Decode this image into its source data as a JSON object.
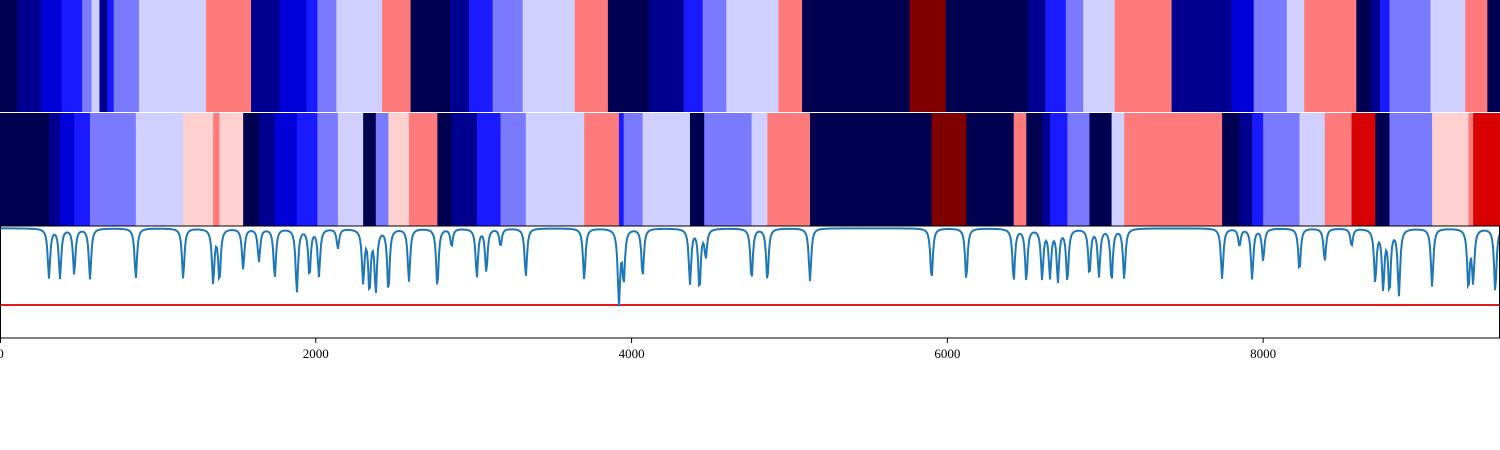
{
  "chart_data": [
    {
      "type": "heatmap",
      "name": "heatmap-upper",
      "x_range": [
        0,
        9500
      ],
      "colormap": "seismic",
      "segments": [
        {
          "start": 0,
          "end": 110,
          "color": "#000050"
        },
        {
          "start": 110,
          "end": 260,
          "color": "#000090"
        },
        {
          "start": 260,
          "end": 390,
          "color": "#0000d8"
        },
        {
          "start": 390,
          "end": 520,
          "color": "#1a1aff"
        },
        {
          "start": 520,
          "end": 580,
          "color": "#7a7aff"
        },
        {
          "start": 580,
          "end": 630,
          "color": "#d0d0ff"
        },
        {
          "start": 630,
          "end": 680,
          "color": "#000090"
        },
        {
          "start": 680,
          "end": 720,
          "color": "#1a1aff"
        },
        {
          "start": 720,
          "end": 880,
          "color": "#7a7aff"
        },
        {
          "start": 880,
          "end": 1305,
          "color": "#d0d0ff"
        },
        {
          "start": 1305,
          "end": 1590,
          "color": "#ff7a7a"
        },
        {
          "start": 1590,
          "end": 1770,
          "color": "#000090"
        },
        {
          "start": 1770,
          "end": 1940,
          "color": "#0000d8"
        },
        {
          "start": 1940,
          "end": 2010,
          "color": "#1a1aff"
        },
        {
          "start": 2010,
          "end": 2130,
          "color": "#7a7aff"
        },
        {
          "start": 2130,
          "end": 2420,
          "color": "#d0d0ff"
        },
        {
          "start": 2420,
          "end": 2600,
          "color": "#ff7a7a"
        },
        {
          "start": 2600,
          "end": 2850,
          "color": "#000050"
        },
        {
          "start": 2850,
          "end": 2970,
          "color": "#000090"
        },
        {
          "start": 2970,
          "end": 3120,
          "color": "#1a1aff"
        },
        {
          "start": 3120,
          "end": 3310,
          "color": "#7a7aff"
        },
        {
          "start": 3310,
          "end": 3640,
          "color": "#d0d0ff"
        },
        {
          "start": 3640,
          "end": 3850,
          "color": "#ff7a7a"
        },
        {
          "start": 3850,
          "end": 4110,
          "color": "#000050"
        },
        {
          "start": 4110,
          "end": 4330,
          "color": "#000090"
        },
        {
          "start": 4330,
          "end": 4450,
          "color": "#1a1aff"
        },
        {
          "start": 4450,
          "end": 4600,
          "color": "#7a7aff"
        },
        {
          "start": 4600,
          "end": 4930,
          "color": "#d0d0ff"
        },
        {
          "start": 4930,
          "end": 5080,
          "color": "#ff7a7a"
        },
        {
          "start": 5080,
          "end": 5760,
          "color": "#000050"
        },
        {
          "start": 5760,
          "end": 5990,
          "color": "#800000"
        },
        {
          "start": 5990,
          "end": 6510,
          "color": "#000050"
        },
        {
          "start": 6510,
          "end": 6620,
          "color": "#000090"
        },
        {
          "start": 6620,
          "end": 6750,
          "color": "#1a1aff"
        },
        {
          "start": 6750,
          "end": 6860,
          "color": "#7a7aff"
        },
        {
          "start": 6860,
          "end": 7060,
          "color": "#d0d0ff"
        },
        {
          "start": 7060,
          "end": 7420,
          "color": "#ff7a7a"
        },
        {
          "start": 7420,
          "end": 7800,
          "color": "#000090"
        },
        {
          "start": 7800,
          "end": 7940,
          "color": "#0000d8"
        },
        {
          "start": 7940,
          "end": 8150,
          "color": "#7a7aff"
        },
        {
          "start": 8150,
          "end": 8260,
          "color": "#d0d0ff"
        },
        {
          "start": 8260,
          "end": 8590,
          "color": "#ff7a7a"
        },
        {
          "start": 8590,
          "end": 8680,
          "color": "#000050"
        },
        {
          "start": 8680,
          "end": 8740,
          "color": "#000090"
        },
        {
          "start": 8740,
          "end": 8800,
          "color": "#1a1aff"
        },
        {
          "start": 8800,
          "end": 9060,
          "color": "#7a7aff"
        },
        {
          "start": 9060,
          "end": 9280,
          "color": "#d0d0ff"
        },
        {
          "start": 9280,
          "end": 9420,
          "color": "#ff7a7a"
        },
        {
          "start": 9420,
          "end": 9500,
          "color": "#000050"
        }
      ]
    },
    {
      "type": "heatmap",
      "name": "heatmap-lower",
      "x_range": [
        0,
        9500
      ],
      "colormap": "seismic",
      "segments": [
        {
          "start": 0,
          "end": 310,
          "color": "#000050"
        },
        {
          "start": 310,
          "end": 380,
          "color": "#000090"
        },
        {
          "start": 380,
          "end": 470,
          "color": "#0000d8"
        },
        {
          "start": 470,
          "end": 570,
          "color": "#1a1aff"
        },
        {
          "start": 570,
          "end": 860,
          "color": "#7a7aff"
        },
        {
          "start": 860,
          "end": 1160,
          "color": "#d0d0ff"
        },
        {
          "start": 1160,
          "end": 1350,
          "color": "#ffd0d0"
        },
        {
          "start": 1350,
          "end": 1390,
          "color": "#ff7a7a"
        },
        {
          "start": 1390,
          "end": 1540,
          "color": "#ffd0d0"
        },
        {
          "start": 1540,
          "end": 1640,
          "color": "#000050"
        },
        {
          "start": 1640,
          "end": 1740,
          "color": "#000090"
        },
        {
          "start": 1740,
          "end": 1880,
          "color": "#0000d8"
        },
        {
          "start": 1880,
          "end": 2010,
          "color": "#1a1aff"
        },
        {
          "start": 2010,
          "end": 2140,
          "color": "#7a7aff"
        },
        {
          "start": 2140,
          "end": 2300,
          "color": "#d0d0ff"
        },
        {
          "start": 2300,
          "end": 2380,
          "color": "#000050"
        },
        {
          "start": 2380,
          "end": 2460,
          "color": "#7a7aff"
        },
        {
          "start": 2460,
          "end": 2590,
          "color": "#ffd0d0"
        },
        {
          "start": 2590,
          "end": 2770,
          "color": "#ff7a7a"
        },
        {
          "start": 2770,
          "end": 2860,
          "color": "#000050"
        },
        {
          "start": 2860,
          "end": 3020,
          "color": "#000090"
        },
        {
          "start": 3020,
          "end": 3170,
          "color": "#1a1aff"
        },
        {
          "start": 3170,
          "end": 3330,
          "color": "#7a7aff"
        },
        {
          "start": 3330,
          "end": 3700,
          "color": "#d0d0ff"
        },
        {
          "start": 3700,
          "end": 3920,
          "color": "#ff7a7a"
        },
        {
          "start": 3920,
          "end": 3950,
          "color": "#1a1aff"
        },
        {
          "start": 3950,
          "end": 4070,
          "color": "#7a7aff"
        },
        {
          "start": 4070,
          "end": 4370,
          "color": "#d0d0ff"
        },
        {
          "start": 4370,
          "end": 4460,
          "color": "#000050"
        },
        {
          "start": 4460,
          "end": 4760,
          "color": "#7a7aff"
        },
        {
          "start": 4760,
          "end": 4860,
          "color": "#d0d0ff"
        },
        {
          "start": 4860,
          "end": 5130,
          "color": "#ff7a7a"
        },
        {
          "start": 5130,
          "end": 5900,
          "color": "#000050"
        },
        {
          "start": 5900,
          "end": 6120,
          "color": "#800000"
        },
        {
          "start": 6120,
          "end": 6420,
          "color": "#000050"
        },
        {
          "start": 6420,
          "end": 6500,
          "color": "#ff7a7a"
        },
        {
          "start": 6500,
          "end": 6600,
          "color": "#000050"
        },
        {
          "start": 6600,
          "end": 6650,
          "color": "#000090"
        },
        {
          "start": 6650,
          "end": 6760,
          "color": "#1a1aff"
        },
        {
          "start": 6760,
          "end": 6900,
          "color": "#7a7aff"
        },
        {
          "start": 6900,
          "end": 7040,
          "color": "#000050"
        },
        {
          "start": 7040,
          "end": 7120,
          "color": "#d0d0ff"
        },
        {
          "start": 7120,
          "end": 7740,
          "color": "#ff7a7a"
        },
        {
          "start": 7740,
          "end": 7850,
          "color": "#000050"
        },
        {
          "start": 7850,
          "end": 7930,
          "color": "#000090"
        },
        {
          "start": 7930,
          "end": 8000,
          "color": "#1a1aff"
        },
        {
          "start": 8000,
          "end": 8230,
          "color": "#7a7aff"
        },
        {
          "start": 8230,
          "end": 8390,
          "color": "#d0d0ff"
        },
        {
          "start": 8390,
          "end": 8560,
          "color": "#ff7a7a"
        },
        {
          "start": 8560,
          "end": 8710,
          "color": "#d80000"
        },
        {
          "start": 8710,
          "end": 8800,
          "color": "#000050"
        },
        {
          "start": 8800,
          "end": 9070,
          "color": "#7a7aff"
        },
        {
          "start": 9070,
          "end": 9300,
          "color": "#ffd0d0"
        },
        {
          "start": 9300,
          "end": 9330,
          "color": "#ff7a7a"
        },
        {
          "start": 9330,
          "end": 9500,
          "color": "#d80000"
        }
      ]
    },
    {
      "type": "line",
      "name": "signal",
      "x_range": [
        0,
        9500
      ],
      "y_range": [
        -1,
        0.02
      ],
      "threshold": -0.7,
      "colors": {
        "line": "#1f77b4",
        "threshold": "#e41a1c"
      },
      "dips": [
        {
          "x": 310,
          "depth": 0.45
        },
        {
          "x": 380,
          "depth": 0.45
        },
        {
          "x": 470,
          "depth": 0.42
        },
        {
          "x": 570,
          "depth": 0.46
        },
        {
          "x": 860,
          "depth": 0.46
        },
        {
          "x": 1160,
          "depth": 0.46
        },
        {
          "x": 1350,
          "depth": 0.49
        },
        {
          "x": 1390,
          "depth": 0.47
        },
        {
          "x": 1540,
          "depth": 0.37
        },
        {
          "x": 1640,
          "depth": 0.3
        },
        {
          "x": 1740,
          "depth": 0.45
        },
        {
          "x": 1880,
          "depth": 0.58
        },
        {
          "x": 1960,
          "depth": 0.43
        },
        {
          "x": 2020,
          "depth": 0.43
        },
        {
          "x": 2140,
          "depth": 0.18
        },
        {
          "x": 2300,
          "depth": 0.48
        },
        {
          "x": 2340,
          "depth": 0.55
        },
        {
          "x": 2380,
          "depth": 0.56
        },
        {
          "x": 2460,
          "depth": 0.57
        },
        {
          "x": 2590,
          "depth": 0.48
        },
        {
          "x": 2770,
          "depth": 0.54
        },
        {
          "x": 2860,
          "depth": 0.16
        },
        {
          "x": 3020,
          "depth": 0.44
        },
        {
          "x": 3080,
          "depth": 0.4
        },
        {
          "x": 3170,
          "depth": 0.16
        },
        {
          "x": 3330,
          "depth": 0.44
        },
        {
          "x": 3700,
          "depth": 0.47
        },
        {
          "x": 3920,
          "depth": 0.67
        },
        {
          "x": 3950,
          "depth": 0.46
        },
        {
          "x": 4070,
          "depth": 0.44
        },
        {
          "x": 4370,
          "depth": 0.5
        },
        {
          "x": 4430,
          "depth": 0.55
        },
        {
          "x": 4470,
          "depth": 0.25
        },
        {
          "x": 4760,
          "depth": 0.47
        },
        {
          "x": 4860,
          "depth": 0.48
        },
        {
          "x": 5130,
          "depth": 0.48
        },
        {
          "x": 5900,
          "depth": 0.47
        },
        {
          "x": 6120,
          "depth": 0.47
        },
        {
          "x": 6420,
          "depth": 0.48
        },
        {
          "x": 6500,
          "depth": 0.48
        },
        {
          "x": 6600,
          "depth": 0.45
        },
        {
          "x": 6650,
          "depth": 0.43
        },
        {
          "x": 6700,
          "depth": 0.47
        },
        {
          "x": 6760,
          "depth": 0.48
        },
        {
          "x": 6900,
          "depth": 0.42
        },
        {
          "x": 6960,
          "depth": 0.43
        },
        {
          "x": 7040,
          "depth": 0.48
        },
        {
          "x": 7120,
          "depth": 0.46
        },
        {
          "x": 7740,
          "depth": 0.46
        },
        {
          "x": 7850,
          "depth": 0.16
        },
        {
          "x": 7930,
          "depth": 0.46
        },
        {
          "x": 8000,
          "depth": 0.29
        },
        {
          "x": 8230,
          "depth": 0.39
        },
        {
          "x": 8390,
          "depth": 0.3
        },
        {
          "x": 8560,
          "depth": 0.16
        },
        {
          "x": 8710,
          "depth": 0.48
        },
        {
          "x": 8760,
          "depth": 0.53
        },
        {
          "x": 8800,
          "depth": 0.56
        },
        {
          "x": 8860,
          "depth": 0.6
        },
        {
          "x": 9070,
          "depth": 0.53
        },
        {
          "x": 9300,
          "depth": 0.53
        },
        {
          "x": 9330,
          "depth": 0.47
        },
        {
          "x": 9470,
          "depth": 0.58
        }
      ]
    }
  ],
  "x_axis": {
    "ticks": [
      0,
      2000,
      4000,
      6000,
      8000
    ],
    "tick_labels": [
      "0",
      "2000",
      "4000",
      "6000",
      "8000"
    ]
  }
}
